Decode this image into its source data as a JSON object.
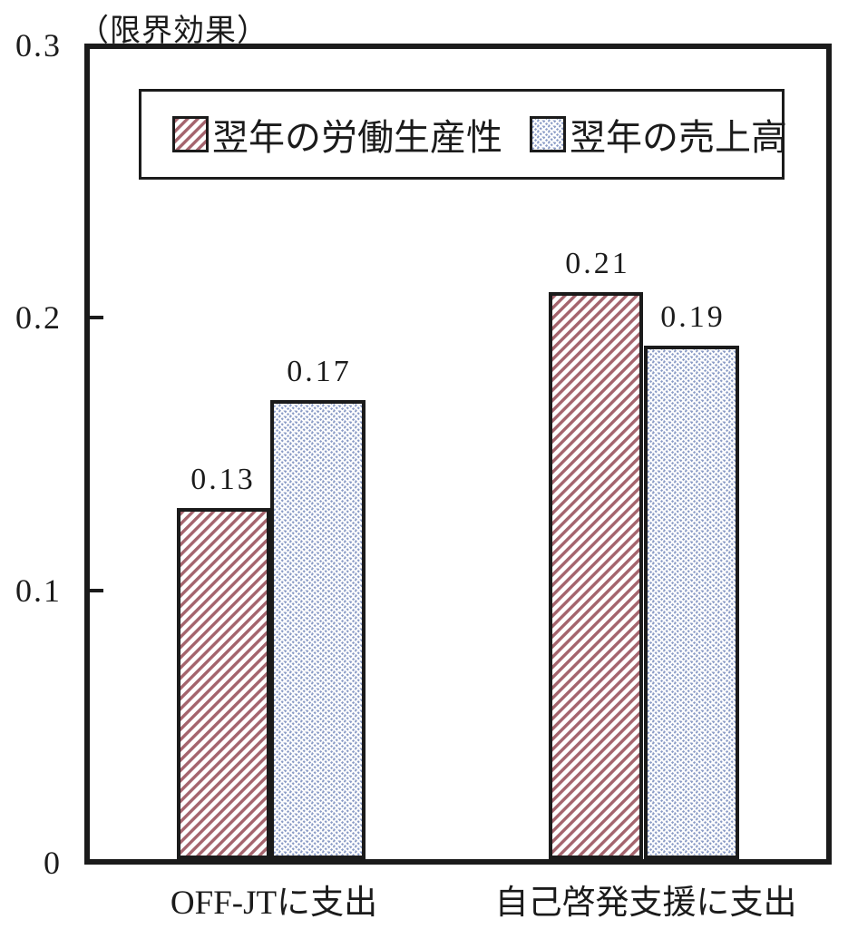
{
  "page": {
    "background": "#ffffff",
    "ink_color": "#1b1b1b"
  },
  "chart_data": {
    "type": "bar",
    "title": "（限界効果）",
    "categories": [
      "OFF-JTに支出",
      "自己啓発支援に支出"
    ],
    "series": [
      {
        "name": "翌年の労働生産性",
        "values": [
          0.13,
          0.21
        ],
        "pattern": "red-diagonal-hatch",
        "color": "#A4646D"
      },
      {
        "name": "翌年の売上高",
        "values": [
          0.17,
          0.19
        ],
        "pattern": "blue-diagonal-weave",
        "color": "#8B9CC6"
      }
    ],
    "value_labels": [
      [
        "0.13",
        "0.21"
      ],
      [
        "0.17",
        "0.19"
      ]
    ],
    "ylim": [
      0,
      0.3
    ],
    "ytick_labels": [
      "0.3",
      "0.2",
      "0.1",
      "0"
    ],
    "grid": false,
    "legend_position": "top-center-inside"
  }
}
